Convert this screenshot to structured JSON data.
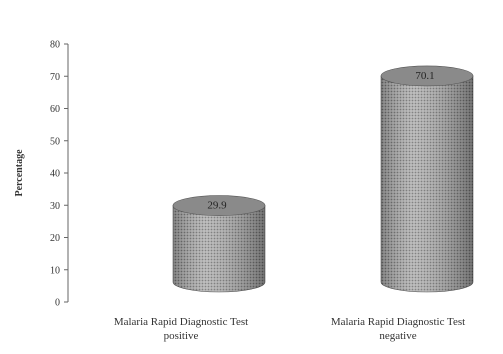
{
  "chart_data": {
    "type": "bar",
    "style": "3d-cylinder",
    "categories": [
      [
        "Malaria Rapid Diagnostic Test",
        "positive"
      ],
      [
        "Malaria Rapid Diagnostic Test",
        "negative"
      ]
    ],
    "values": [
      29.9,
      70.1
    ],
    "data_labels": [
      "29.9",
      "70.1"
    ],
    "ylabel": "Percentage",
    "ylim": [
      0,
      80
    ],
    "yticks": [
      "0",
      "10",
      "20",
      "30",
      "40",
      "50",
      "60",
      "70",
      "80"
    ],
    "grid": false,
    "legend": "none",
    "bar_color": "#9a9a9a"
  }
}
